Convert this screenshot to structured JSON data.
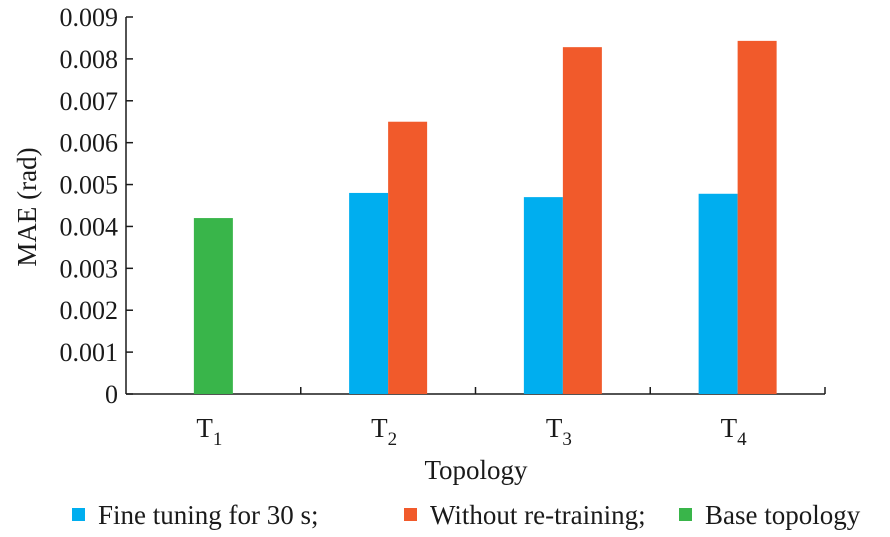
{
  "chart_data": {
    "type": "bar",
    "title": "",
    "xlabel": "Topology",
    "ylabel": "MAE (rad)",
    "ylim": [
      0,
      0.009
    ],
    "yticks": [
      "0",
      "0.001",
      "0.002",
      "0.003",
      "0.004",
      "0.005",
      "0.006",
      "0.007",
      "0.008",
      "0.009"
    ],
    "categories": [
      {
        "base": "T",
        "sub": "1"
      },
      {
        "base": "T",
        "sub": "2"
      },
      {
        "base": "T",
        "sub": "3"
      },
      {
        "base": "T",
        "sub": "4"
      }
    ],
    "series": [
      {
        "name": "Fine tuning for 30 s;",
        "color": "#00aeef",
        "values": [
          null,
          0.0048,
          0.0047,
          0.00478
        ]
      },
      {
        "name": "Without re-training;",
        "color": "#f15a2b",
        "values": [
          null,
          0.0065,
          0.00828,
          0.00843
        ]
      },
      {
        "name": "Base topology",
        "color": "#39b54a",
        "values": [
          0.0042,
          null,
          null,
          null
        ]
      }
    ],
    "grid": false,
    "legend_position": "bottom"
  }
}
